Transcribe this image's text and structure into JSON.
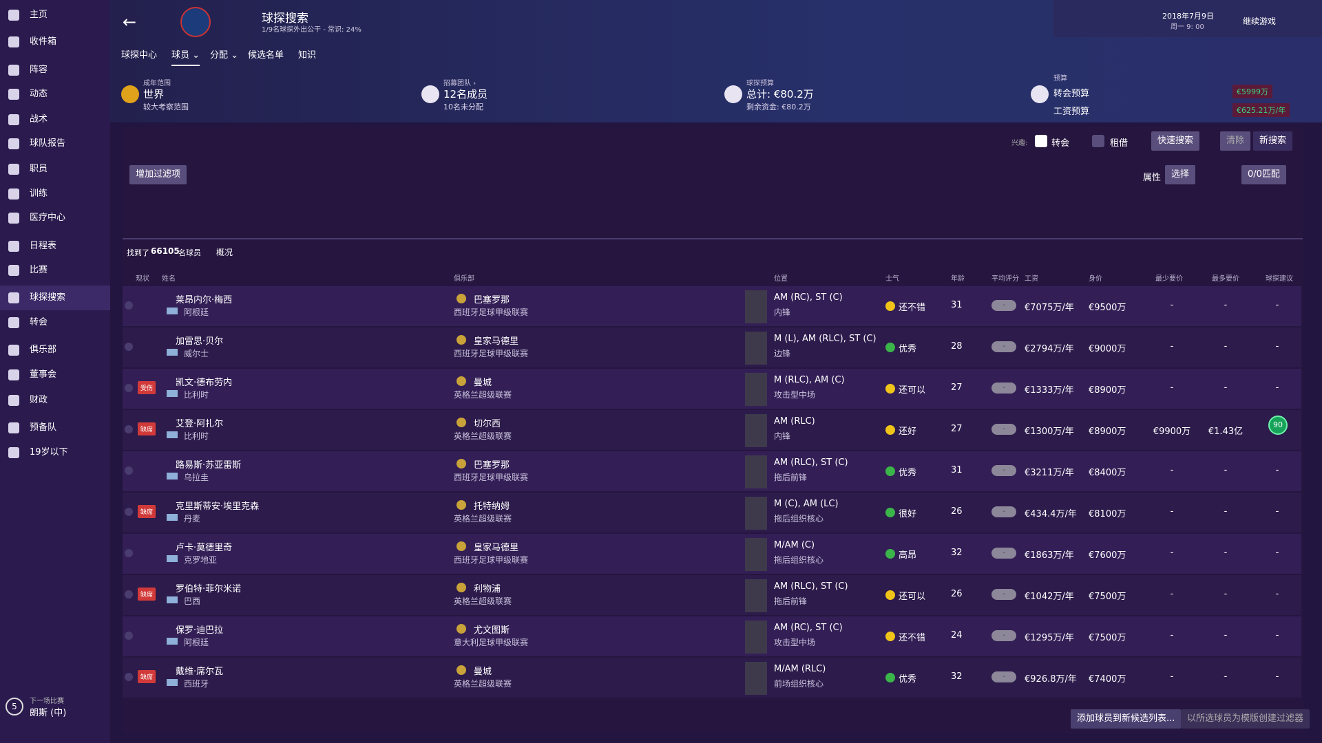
{
  "sidebar": {
    "items": [
      "主页",
      "收件箱",
      "阵容",
      "动态",
      "战术",
      "球队报告",
      "职员",
      "训练",
      "医疗中心",
      "日程表",
      "比赛",
      "球探搜索",
      "转会",
      "俱乐部",
      "董事会",
      "财政",
      "预备队",
      "19岁以下"
    ],
    "active": 11,
    "next_match_label": "下一场比赛",
    "next_match": "朗斯 (中)",
    "next_match_days": "5"
  },
  "header": {
    "title": "球探搜索",
    "subtitle": "1/9名球探外出公干 - 常识: 24%",
    "date": "2018年7月9日",
    "time": "周一 9: 00",
    "continue": "继续游戏"
  },
  "tabs": {
    "items": [
      "球探中心",
      "球员",
      "分配",
      "候选名单",
      "知识"
    ],
    "active": 1
  },
  "info": [
    {
      "label": "成年范围",
      "value": "世界",
      "sub": "较大考察范围"
    },
    {
      "label": "招募团队 ›",
      "value": "12名成员",
      "sub": "10名未分配"
    },
    {
      "label": "球探预算",
      "value": "总计: €80.2万",
      "sub": "剩余资金: €80.2万"
    }
  ],
  "budget": {
    "label": "预算",
    "transfer_label": "转会预算",
    "transfer": "€5999万",
    "wage_label": "工资预算",
    "wage": "€625.21万/年"
  },
  "filters": {
    "interest": "兴趣:",
    "transfer": "转会",
    "loan": "租借",
    "quick": "快速搜索",
    "clear": "清除",
    "new": "新搜索",
    "add": "增加过滤项",
    "attributes": "属性",
    "select": "选择",
    "match": "0/0匹配"
  },
  "results": {
    "prefix": "找到了",
    "count": "66105",
    "suffix": "名球员",
    "view": "概况"
  },
  "table": {
    "columns": [
      "现状",
      "姓名",
      "俱乐部",
      "位置",
      "士气",
      "年龄",
      "平均评分",
      "工资",
      "身价",
      "最少要价",
      "最多要价",
      "球探建议"
    ],
    "rows": [
      {
        "status": null,
        "name": "莱昂内尔·梅西",
        "nation": "阿根廷",
        "club": "巴塞罗那",
        "league": "西班牙足球甲级联赛",
        "position": "AM (RC), ST (C)",
        "role": "内锋",
        "morale": "还不错",
        "morale_color": "#f0c419",
        "age": 31,
        "rating": "-",
        "wage": "€7075万/年",
        "value": "€9500万",
        "min": "-",
        "max": "-",
        "rec": "-"
      },
      {
        "status": null,
        "name": "加雷思·贝尔",
        "nation": "威尔士",
        "club": "皇家马德里",
        "league": "西班牙足球甲级联赛",
        "position": "M (L), AM (RLC), ST (C)",
        "role": "边锋",
        "morale": "优秀",
        "morale_color": "#3bb54a",
        "age": 28,
        "rating": "-",
        "wage": "€2794万/年",
        "value": "€9000万",
        "min": "-",
        "max": "-",
        "rec": "-"
      },
      {
        "status": "受伤",
        "name": "凯文·德布劳内",
        "nation": "比利时",
        "club": "曼城",
        "league": "英格兰超级联赛",
        "position": "M (RLC), AM (C)",
        "role": "攻击型中场",
        "morale": "还可以",
        "morale_color": "#f0c419",
        "age": 27,
        "rating": "-",
        "wage": "€1333万/年",
        "value": "€8900万",
        "min": "-",
        "max": "-",
        "rec": "-"
      },
      {
        "status": "缺席",
        "name": "艾登·阿扎尔",
        "nation": "比利时",
        "club": "切尔西",
        "league": "英格兰超级联赛",
        "position": "AM (RLC)",
        "role": "内锋",
        "morale": "还好",
        "morale_color": "#f0c419",
        "age": 27,
        "rating": "-",
        "wage": "€1300万/年",
        "value": "€8900万",
        "min": "€9900万",
        "max": "€1.43亿",
        "rec": "90"
      },
      {
        "status": null,
        "name": "路易斯·苏亚雷斯",
        "nation": "乌拉圭",
        "club": "巴塞罗那",
        "league": "西班牙足球甲级联赛",
        "position": "AM (RLC), ST (C)",
        "role": "拖后前锋",
        "morale": "优秀",
        "morale_color": "#3bb54a",
        "age": 31,
        "rating": "-",
        "wage": "€3211万/年",
        "value": "€8400万",
        "min": "-",
        "max": "-",
        "rec": "-"
      },
      {
        "status": "缺席",
        "name": "克里斯蒂安·埃里克森",
        "nation": "丹麦",
        "club": "托特纳姆",
        "league": "英格兰超级联赛",
        "position": "M (C), AM (LC)",
        "role": "拖后组织核心",
        "morale": "很好",
        "morale_color": "#3bb54a",
        "age": 26,
        "rating": "-",
        "wage": "€434.4万/年",
        "value": "€8100万",
        "min": "-",
        "max": "-",
        "rec": "-"
      },
      {
        "status": null,
        "name": "卢卡·莫德里奇",
        "nation": "克罗地亚",
        "club": "皇家马德里",
        "league": "西班牙足球甲级联赛",
        "position": "M/AM (C)",
        "role": "拖后组织核心",
        "morale": "高昂",
        "morale_color": "#3bb54a",
        "age": 32,
        "rating": "-",
        "wage": "€1863万/年",
        "value": "€7600万",
        "min": "-",
        "max": "-",
        "rec": "-"
      },
      {
        "status": "缺席",
        "name": "罗伯特·菲尔米诺",
        "nation": "巴西",
        "club": "利物浦",
        "league": "英格兰超级联赛",
        "position": "AM (RLC), ST (C)",
        "role": "拖后前锋",
        "morale": "还可以",
        "morale_color": "#f0c419",
        "age": 26,
        "rating": "-",
        "wage": "€1042万/年",
        "value": "€7500万",
        "min": "-",
        "max": "-",
        "rec": "-"
      },
      {
        "status": null,
        "name": "保罗·迪巴拉",
        "nation": "阿根廷",
        "club": "尤文图斯",
        "league": "意大利足球甲级联赛",
        "position": "AM (RC), ST (C)",
        "role": "攻击型中场",
        "morale": "还不错",
        "morale_color": "#f0c419",
        "age": 24,
        "rating": "-",
        "wage": "€1295万/年",
        "value": "€7500万",
        "min": "-",
        "max": "-",
        "rec": "-"
      },
      {
        "status": "缺席",
        "name": "戴维·席尔瓦",
        "nation": "西班牙",
        "club": "曼城",
        "league": "英格兰超级联赛",
        "position": "M/AM (RLC)",
        "role": "前场组织核心",
        "morale": "优秀",
        "morale_color": "#3bb54a",
        "age": 32,
        "rating": "-",
        "wage": "€926.8万/年",
        "value": "€7400万",
        "min": "-",
        "max": "-",
        "rec": "-"
      }
    ]
  },
  "footer": {
    "add_shortlist": "添加球员到新候选列表...",
    "create_filter": "以所选球员为模版创建过滤器"
  }
}
